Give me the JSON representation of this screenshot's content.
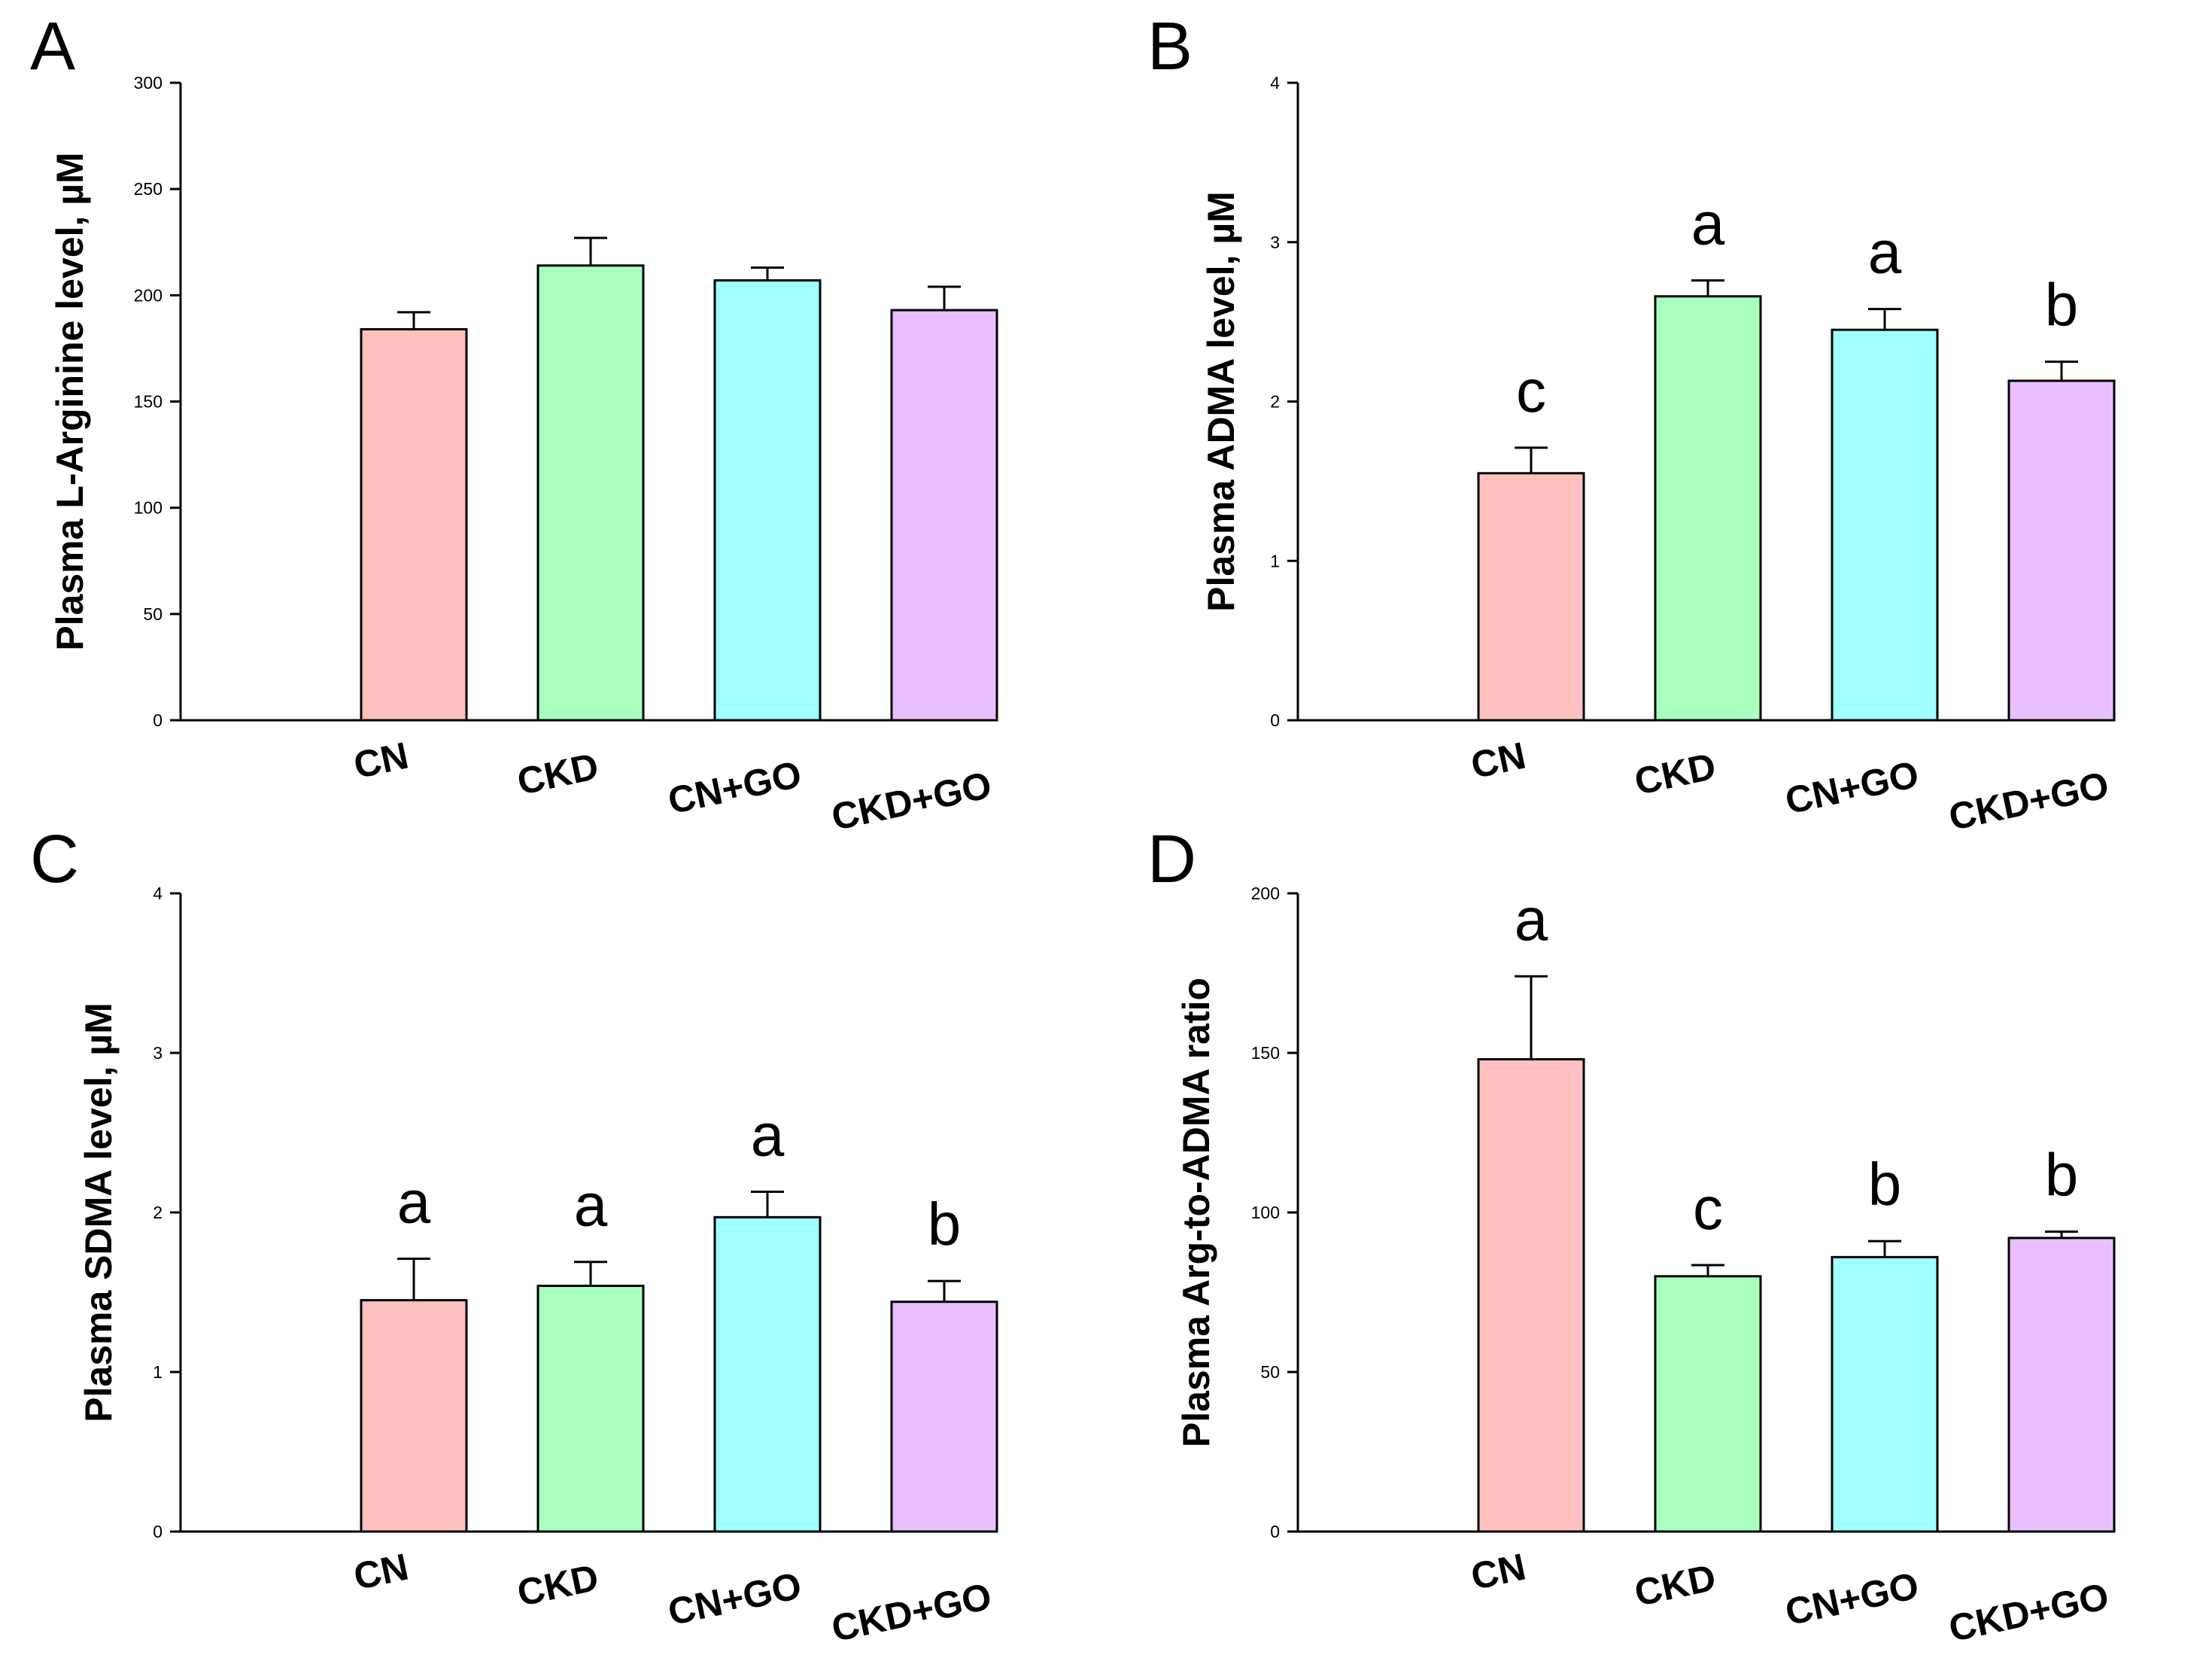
{
  "chart_data": [
    {
      "type": "bar",
      "panel": "A",
      "ylabel": "Plasma L-Arginine level, µM",
      "ylim": [
        0,
        300
      ],
      "yticks": [
        0,
        50,
        100,
        150,
        200,
        250,
        300
      ],
      "categories": [
        "CN",
        "CKD",
        "CN+GO",
        "CKD+GO"
      ],
      "values": [
        184,
        214,
        207,
        193
      ],
      "errors": [
        8,
        13,
        6,
        11
      ],
      "labels": [
        "",
        "",
        "",
        ""
      ],
      "colors": [
        "#FFC0C0",
        "#A8FFBE",
        "#A0FFFF",
        "#E8C0FF"
      ]
    },
    {
      "type": "bar",
      "panel": "B",
      "ylabel": "Plasma ADMA level, µM",
      "ylim": [
        0,
        4
      ],
      "yticks": [
        0,
        1,
        2,
        3,
        4
      ],
      "categories": [
        "CN",
        "CKD",
        "CN+GO",
        "CKD+GO"
      ],
      "values": [
        1.55,
        2.66,
        2.45,
        2.13
      ],
      "errors": [
        0.16,
        0.1,
        0.13,
        0.12
      ],
      "labels": [
        "c",
        "a",
        "a",
        "b"
      ],
      "colors": [
        "#FFC0C0",
        "#A8FFBE",
        "#A0FFFF",
        "#E8C0FF"
      ]
    },
    {
      "type": "bar",
      "panel": "C",
      "ylabel": "Plasma SDMA level, µM",
      "ylim": [
        0,
        4
      ],
      "yticks": [
        0,
        1,
        2,
        3,
        4
      ],
      "categories": [
        "CN",
        "CKD",
        "CN+GO",
        "CKD+GO"
      ],
      "values": [
        1.45,
        1.54,
        1.97,
        1.44
      ],
      "errors": [
        0.26,
        0.15,
        0.16,
        0.13
      ],
      "labels": [
        "a",
        "a",
        "a",
        "b"
      ],
      "colors": [
        "#FFC0C0",
        "#A8FFBE",
        "#A0FFFF",
        "#E8C0FF"
      ]
    },
    {
      "type": "bar",
      "panel": "D",
      "ylabel": "Plasma Arg-to-ADMA ratio",
      "ylim": [
        0,
        200
      ],
      "yticks": [
        0,
        50,
        100,
        150,
        200
      ],
      "categories": [
        "CN",
        "CKD",
        "CN+GO",
        "CKD+GO"
      ],
      "values": [
        148,
        80,
        86,
        92
      ],
      "errors": [
        26,
        3.5,
        5,
        2
      ],
      "labels": [
        "a",
        "c",
        "b",
        "b"
      ],
      "colors": [
        "#FFC0C0",
        "#A8FFBE",
        "#A0FFFF",
        "#E8C0FF"
      ]
    }
  ]
}
